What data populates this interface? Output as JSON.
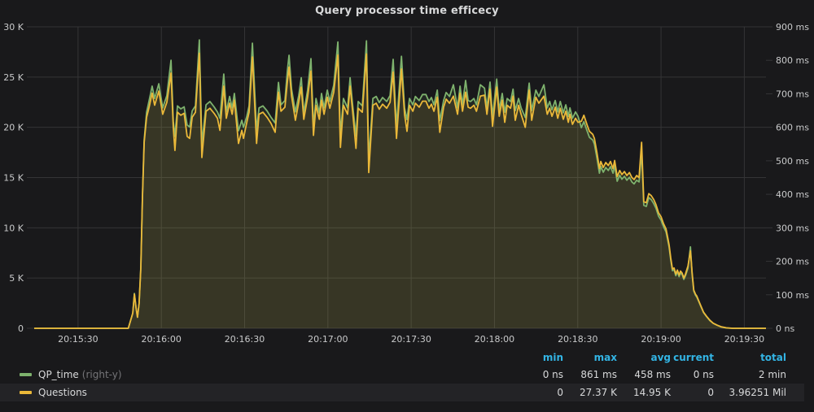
{
  "panel": {
    "title": "Query processor time efficecy"
  },
  "colors": {
    "background": "#19191b",
    "grid": "#343436",
    "axis_text": "#c9cacb",
    "title_text": "#d8d9da",
    "legend_header": "#33b5e5",
    "qp_time": "#7eb26d",
    "questions": "#eab839",
    "row_highlight": "#232326"
  },
  "legend": {
    "stat_columns": [
      "min",
      "max",
      "avg",
      "current",
      "total"
    ],
    "items": [
      {
        "label": "QP_time",
        "suffix": "(right-y)",
        "color": "#7eb26d",
        "axis": "right",
        "highlighted": false,
        "stats": [
          "0 ns",
          "861 ms",
          "458 ms",
          "0 ns",
          "2 min"
        ]
      },
      {
        "label": "Questions",
        "suffix": "",
        "color": "#eab839",
        "axis": "left",
        "highlighted": true,
        "stats": [
          "0",
          "27.37 K",
          "14.95 K",
          "0",
          "3.96251 Mil"
        ]
      }
    ]
  },
  "chart_data": {
    "type": "line",
    "title": "Query processor time efficecy",
    "grid": true,
    "legend_position": "bottom",
    "x_unit": "time (hh:mm:ss), seconds offset from left edge 20:15:14",
    "x_domain": [
      0,
      263.6
    ],
    "x_ticks": {
      "t": [
        15.8,
        45.8,
        75.8,
        105.8,
        135.8,
        165.8,
        195.8,
        225.8,
        255.8
      ],
      "labels": [
        "20:15:30",
        "20:16:00",
        "20:16:30",
        "20:17:00",
        "20:17:30",
        "20:18:00",
        "20:18:30",
        "20:19:00",
        "20:19:30"
      ]
    },
    "y_left": {
      "range": [
        0,
        30000
      ],
      "tick_values": [
        0,
        5000,
        10000,
        15000,
        20000,
        25000,
        30000
      ],
      "tick_labels": [
        "0",
        "5 K",
        "10 K",
        "15 K",
        "20 K",
        "25 K",
        "30 K"
      ]
    },
    "y_right": {
      "range": [
        0,
        900
      ],
      "tick_values": [
        0,
        100,
        200,
        300,
        400,
        500,
        600,
        700,
        800,
        900
      ],
      "tick_labels": [
        "0 ns",
        "100 ms",
        "200 ms",
        "300 ms",
        "400 ms",
        "500 ms",
        "600 ms",
        "700 ms",
        "800 ms",
        "900 ms"
      ]
    },
    "columns": [
      "t_seconds",
      "questions",
      "qp_time_ms"
    ],
    "series": [
      {
        "name": "Questions",
        "axis": "left",
        "column": 1,
        "color": "#eab839",
        "fill": "rgba(234,184,57,0.10)"
      },
      {
        "name": "QP_time",
        "axis": "right",
        "column": 2,
        "color": "#7eb26d",
        "fill": "rgba(126,178,109,0.10)"
      }
    ],
    "points": [
      [
        0,
        0,
        0
      ],
      [
        20,
        0,
        0
      ],
      [
        33.9,
        0,
        0
      ],
      [
        35.5,
        1500,
        45
      ],
      [
        36.1,
        3400,
        104
      ],
      [
        36.7,
        2000,
        60
      ],
      [
        37.2,
        1100,
        33
      ],
      [
        37.8,
        2500,
        75
      ],
      [
        38.4,
        6000,
        182
      ],
      [
        39,
        13000,
        395
      ],
      [
        39.6,
        18500,
        562
      ],
      [
        40.5,
        21000,
        645
      ],
      [
        41.4,
        22000,
        680
      ],
      [
        42.5,
        23400,
        723
      ],
      [
        43.4,
        22200,
        686
      ],
      [
        44.9,
        23600,
        730
      ],
      [
        46.3,
        21300,
        658
      ],
      [
        47.8,
        22500,
        695
      ],
      [
        49.3,
        25400,
        800
      ],
      [
        50.1,
        20000,
        618
      ],
      [
        50.7,
        17700,
        573
      ],
      [
        51.6,
        21500,
        664
      ],
      [
        52.8,
        21200,
        655
      ],
      [
        54,
        21400,
        661
      ],
      [
        55.1,
        19100,
        607
      ],
      [
        56,
        18900,
        601
      ],
      [
        56.9,
        21000,
        649
      ],
      [
        58.1,
        21500,
        664
      ],
      [
        59.5,
        27370,
        861
      ],
      [
        60.4,
        17000,
        551
      ],
      [
        61.9,
        21600,
        667
      ],
      [
        63.3,
        21900,
        677
      ],
      [
        64.8,
        21400,
        661
      ],
      [
        66,
        20900,
        646
      ],
      [
        66.9,
        19700,
        627
      ],
      [
        68.3,
        24100,
        759
      ],
      [
        69.2,
        20900,
        646
      ],
      [
        70.4,
        22400,
        692
      ],
      [
        71.3,
        21300,
        658
      ],
      [
        72.1,
        22700,
        701
      ],
      [
        73.6,
        18400,
        590
      ],
      [
        74.8,
        19700,
        621
      ],
      [
        75.4,
        18900,
        600
      ],
      [
        76.6,
        20500,
        633
      ],
      [
        77.4,
        21500,
        664
      ],
      [
        78.6,
        27000,
        851
      ],
      [
        80.1,
        18400,
        590
      ],
      [
        81,
        21300,
        658
      ],
      [
        82.4,
        21500,
        664
      ],
      [
        83.9,
        21000,
        649
      ],
      [
        85.3,
        20400,
        630
      ],
      [
        86.8,
        19500,
        613
      ],
      [
        88,
        23500,
        734
      ],
      [
        88.9,
        21600,
        667
      ],
      [
        90.3,
        22000,
        680
      ],
      [
        91.2,
        24500,
        768
      ],
      [
        91.8,
        26000,
        815
      ],
      [
        92.7,
        23100,
        714
      ],
      [
        94.1,
        20700,
        646
      ],
      [
        95.3,
        22500,
        695
      ],
      [
        96.2,
        24000,
        748
      ],
      [
        97.1,
        20800,
        643
      ],
      [
        98.5,
        23000,
        711
      ],
      [
        99.7,
        25600,
        805
      ],
      [
        100.6,
        19200,
        601
      ],
      [
        101.5,
        22200,
        686
      ],
      [
        102.7,
        20800,
        643
      ],
      [
        103.5,
        22700,
        701
      ],
      [
        104.4,
        21300,
        658
      ],
      [
        105.6,
        23000,
        711
      ],
      [
        106.5,
        21900,
        677
      ],
      [
        107.9,
        23500,
        726
      ],
      [
        109.4,
        27200,
        855
      ],
      [
        110.3,
        18000,
        577
      ],
      [
        111.4,
        22200,
        686
      ],
      [
        112.9,
        21300,
        658
      ],
      [
        113.8,
        24100,
        748
      ],
      [
        114.7,
        21600,
        667
      ],
      [
        115.9,
        17900,
        574
      ],
      [
        116.7,
        21900,
        677
      ],
      [
        118.2,
        21500,
        664
      ],
      [
        119.7,
        27300,
        858
      ],
      [
        120.5,
        15500,
        502
      ],
      [
        122,
        22200,
        686
      ],
      [
        123.2,
        22400,
        692
      ],
      [
        124.3,
        21800,
        674
      ],
      [
        125.5,
        22300,
        689
      ],
      [
        127,
        21900,
        677
      ],
      [
        128.2,
        22500,
        695
      ],
      [
        129.3,
        25500,
        803
      ],
      [
        130.5,
        18900,
        601
      ],
      [
        132.3,
        25800,
        812
      ],
      [
        133.4,
        21300,
        658
      ],
      [
        134.3,
        19600,
        623
      ],
      [
        135.2,
        22200,
        686
      ],
      [
        136.4,
        21600,
        667
      ],
      [
        137.3,
        22400,
        692
      ],
      [
        138.7,
        22000,
        680
      ],
      [
        139.9,
        22600,
        698
      ],
      [
        141.1,
        22600,
        698
      ],
      [
        142.2,
        21900,
        677
      ],
      [
        143.1,
        22300,
        689
      ],
      [
        144,
        21600,
        667
      ],
      [
        145.2,
        23000,
        711
      ],
      [
        146.1,
        19500,
        620
      ],
      [
        147.5,
        22000,
        680
      ],
      [
        148.4,
        22800,
        704
      ],
      [
        149.6,
        22400,
        692
      ],
      [
        151,
        23100,
        727
      ],
      [
        152.5,
        21300,
        658
      ],
      [
        153.4,
        23400,
        723
      ],
      [
        154.3,
        21600,
        667
      ],
      [
        155.4,
        23500,
        740
      ],
      [
        156.3,
        22000,
        680
      ],
      [
        157.2,
        21900,
        677
      ],
      [
        158.4,
        22200,
        686
      ],
      [
        159.3,
        21600,
        667
      ],
      [
        160.7,
        23100,
        727
      ],
      [
        162.2,
        23200,
        717
      ],
      [
        163.1,
        21300,
        658
      ],
      [
        164.2,
        23800,
        735
      ],
      [
        165.1,
        20100,
        632
      ],
      [
        166.6,
        24000,
        744
      ],
      [
        167.5,
        21100,
        652
      ],
      [
        168.6,
        22700,
        701
      ],
      [
        169.5,
        20500,
        645
      ],
      [
        170.4,
        22200,
        686
      ],
      [
        171.6,
        21900,
        677
      ],
      [
        172.5,
        23100,
        714
      ],
      [
        173.3,
        20700,
        650
      ],
      [
        174.5,
        22200,
        686
      ],
      [
        175.4,
        21300,
        658
      ],
      [
        176.9,
        20000,
        629
      ],
      [
        178.3,
        23700,
        732
      ],
      [
        179.2,
        20700,
        650
      ],
      [
        180.7,
        23000,
        711
      ],
      [
        181.8,
        22400,
        692
      ],
      [
        183.6,
        23100,
        727
      ],
      [
        184.8,
        21300,
        658
      ],
      [
        185.7,
        21900,
        677
      ],
      [
        186.5,
        21100,
        652
      ],
      [
        187.7,
        22000,
        680
      ],
      [
        188.6,
        20900,
        646
      ],
      [
        189.5,
        21900,
        677
      ],
      [
        190.6,
        20800,
        643
      ],
      [
        191.5,
        21600,
        667
      ],
      [
        192.4,
        20500,
        633
      ],
      [
        193,
        21300,
        658
      ],
      [
        193.9,
        20300,
        627
      ],
      [
        195,
        20900,
        646
      ],
      [
        195.9,
        20500,
        633
      ],
      [
        197.1,
        20600,
        599
      ],
      [
        198,
        21200,
        617
      ],
      [
        199.2,
        20200,
        588
      ],
      [
        200,
        19600,
        570
      ],
      [
        201.2,
        19300,
        562
      ],
      [
        201.8,
        18900,
        550
      ],
      [
        202.7,
        17500,
        509
      ],
      [
        203.6,
        15900,
        463
      ],
      [
        204.1,
        16600,
        483
      ],
      [
        205,
        16000,
        466
      ],
      [
        205.9,
        16500,
        480
      ],
      [
        206.8,
        16200,
        471
      ],
      [
        207.6,
        16600,
        483
      ],
      [
        208.5,
        15900,
        463
      ],
      [
        209.1,
        16700,
        486
      ],
      [
        210,
        15100,
        439
      ],
      [
        210.9,
        15700,
        457
      ],
      [
        211.7,
        15300,
        445
      ],
      [
        212.6,
        15600,
        454
      ],
      [
        213.5,
        15200,
        442
      ],
      [
        214.4,
        15500,
        451
      ],
      [
        215.3,
        15000,
        437
      ],
      [
        216.1,
        14800,
        431
      ],
      [
        217,
        15200,
        442
      ],
      [
        217.9,
        15000,
        437
      ],
      [
        218.8,
        18500,
        527
      ],
      [
        219.6,
        12600,
        367
      ],
      [
        220.5,
        12500,
        364
      ],
      [
        221.4,
        13400,
        390
      ],
      [
        222.3,
        13200,
        384
      ],
      [
        223.2,
        12800,
        372
      ],
      [
        224,
        12300,
        358
      ],
      [
        224.9,
        11500,
        335
      ],
      [
        225.8,
        11100,
        323
      ],
      [
        226.7,
        10400,
        303
      ],
      [
        227.6,
        9900,
        288
      ],
      [
        228.1,
        9200,
        268
      ],
      [
        228.7,
        8300,
        242
      ],
      [
        229.3,
        7000,
        204
      ],
      [
        229.9,
        5900,
        172
      ],
      [
        230.5,
        6000,
        175
      ],
      [
        231.1,
        5400,
        157
      ],
      [
        231.7,
        5800,
        169
      ],
      [
        232.3,
        5300,
        154
      ],
      [
        232.8,
        5700,
        166
      ],
      [
        233.4,
        5500,
        160
      ],
      [
        234,
        5000,
        146
      ],
      [
        234.6,
        5400,
        157
      ],
      [
        235.5,
        6200,
        180
      ],
      [
        236.4,
        7700,
        243
      ],
      [
        237,
        5500,
        160
      ],
      [
        237.6,
        3800,
        111
      ],
      [
        238.2,
        3400,
        99
      ],
      [
        238.7,
        3200,
        93
      ],
      [
        239.3,
        2800,
        82
      ],
      [
        240.2,
        2200,
        64
      ],
      [
        241.1,
        1600,
        47
      ],
      [
        242.2,
        1200,
        35
      ],
      [
        243.4,
        800,
        23
      ],
      [
        244.6,
        500,
        15
      ],
      [
        246.1,
        300,
        9
      ],
      [
        247.5,
        150,
        4
      ],
      [
        249.3,
        50,
        1
      ],
      [
        251.6,
        0,
        0
      ],
      [
        263.6,
        0,
        0
      ]
    ]
  }
}
